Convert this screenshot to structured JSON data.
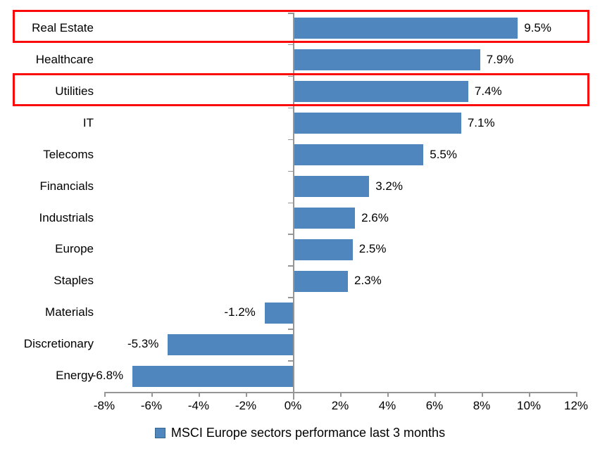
{
  "chart_data": {
    "type": "bar",
    "orientation": "horizontal",
    "legend": "MSCI Europe sectors performance last 3 months",
    "legend_position": "bottom-center",
    "categories": [
      "Real Estate",
      "Healthcare",
      "Utilities",
      "IT",
      "Telecoms",
      "Financials",
      "Industrials",
      "Europe",
      "Staples",
      "Materials",
      "Discretionary",
      "Energy"
    ],
    "values": [
      9.5,
      7.9,
      7.4,
      7.1,
      5.5,
      3.2,
      2.6,
      2.5,
      2.3,
      -1.2,
      -5.3,
      -6.8
    ],
    "data_labels": [
      "9.5%",
      "7.9%",
      "7.4%",
      "7.1%",
      "5.5%",
      "3.2%",
      "2.6%",
      "2.5%",
      "2.3%",
      "-1.2%",
      "-5.3%",
      "-6.8%"
    ],
    "x_tick_labels": [
      "-8%",
      "-6%",
      "-4%",
      "-2%",
      "0%",
      "2%",
      "4%",
      "6%",
      "8%",
      "10%",
      "12%"
    ],
    "xlim": [
      -8,
      12
    ],
    "x_tick_step": 2,
    "grid": false,
    "highlighted_categories": [
      "Real Estate",
      "Utilities"
    ],
    "colors": {
      "bar": "#4E86BD",
      "axis": "#969696",
      "highlight_box": "#FA0A0A",
      "text": "#000000",
      "background": "#FFFFFF"
    }
  }
}
